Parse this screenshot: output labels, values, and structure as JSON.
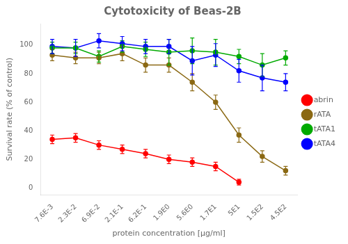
{
  "chart_data": {
    "type": "line",
    "title": "Cytotoxicity of Beas-2B",
    "x_label": "protein concentration [µg/ml]",
    "y_label": "Survival rate (% of control)",
    "categories": [
      "7.6E-3",
      "2.3E-2",
      "6.9E-2",
      "2.1E-1",
      "6.2E-1",
      "1.9E0",
      "5.6E0",
      "1.7E1",
      "5E1",
      "1.5E2",
      "4.5E2"
    ],
    "series": [
      {
        "name": "abrin",
        "color": "#FF0000",
        "values": [
          34,
          35,
          30,
          27,
          24,
          20,
          18,
          15,
          4,
          null,
          null
        ],
        "errors": [
          3,
          3,
          3,
          3,
          3,
          3,
          3,
          3,
          2,
          null,
          null
        ]
      },
      {
        "name": "rATA",
        "color": "#8B6914",
        "values": [
          93,
          91,
          91,
          94,
          86,
          86,
          74,
          60,
          37,
          22,
          12
        ],
        "errors": [
          4,
          4,
          4,
          5,
          5,
          5,
          6,
          5,
          5,
          4,
          3
        ]
      },
      {
        "name": "tATA1",
        "color": "#00AA00",
        "values": [
          98,
          98,
          92,
          99,
          97,
          95,
          96,
          95,
          92,
          86,
          91
        ],
        "errors": [
          4,
          4,
          4,
          4,
          5,
          9,
          9,
          9,
          5,
          8,
          5
        ]
      },
      {
        "name": "tATA4",
        "color": "#0000FF",
        "values": [
          99,
          98,
          103,
          101,
          99,
          99,
          89,
          93,
          82,
          77,
          74
        ],
        "errors": [
          5,
          6,
          5,
          5,
          5,
          5,
          10,
          8,
          8,
          9,
          6
        ]
      }
    ],
    "ylim": [
      -5,
      115
    ],
    "yticks": [
      0,
      20,
      40,
      60,
      80,
      100
    ],
    "grid": false,
    "legend": "right",
    "marker": "circle",
    "line_style": "solid"
  }
}
